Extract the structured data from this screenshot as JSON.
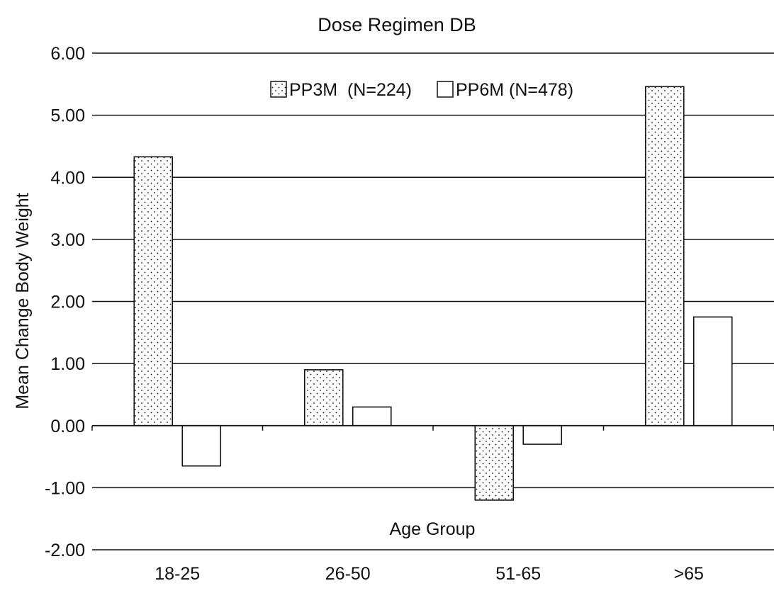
{
  "chart_data": {
    "type": "bar",
    "title": "Dose Regimen DB",
    "xlabel": "Age Group",
    "ylabel": "Mean Change Body Weight",
    "categories": [
      "18-25",
      "26-50",
      "51-65",
      ">65"
    ],
    "series": [
      {
        "name": "PP3M  (N=224)",
        "pattern": "dotted",
        "values": [
          4.33,
          0.9,
          -1.2,
          5.46
        ]
      },
      {
        "name": "PP6M (N=478)",
        "pattern": "plain",
        "values": [
          -0.65,
          0.3,
          -0.3,
          1.75
        ]
      }
    ],
    "ylim": [
      -2.0,
      6.0
    ],
    "yticks": [
      "-2.00",
      "-1.00",
      "0.00",
      "1.00",
      "2.00",
      "3.00",
      "4.00",
      "5.00",
      "6.00"
    ],
    "grid": true,
    "legend_position": "top-center",
    "colors": {
      "ink": "#111111",
      "background": "#ffffff"
    }
  }
}
